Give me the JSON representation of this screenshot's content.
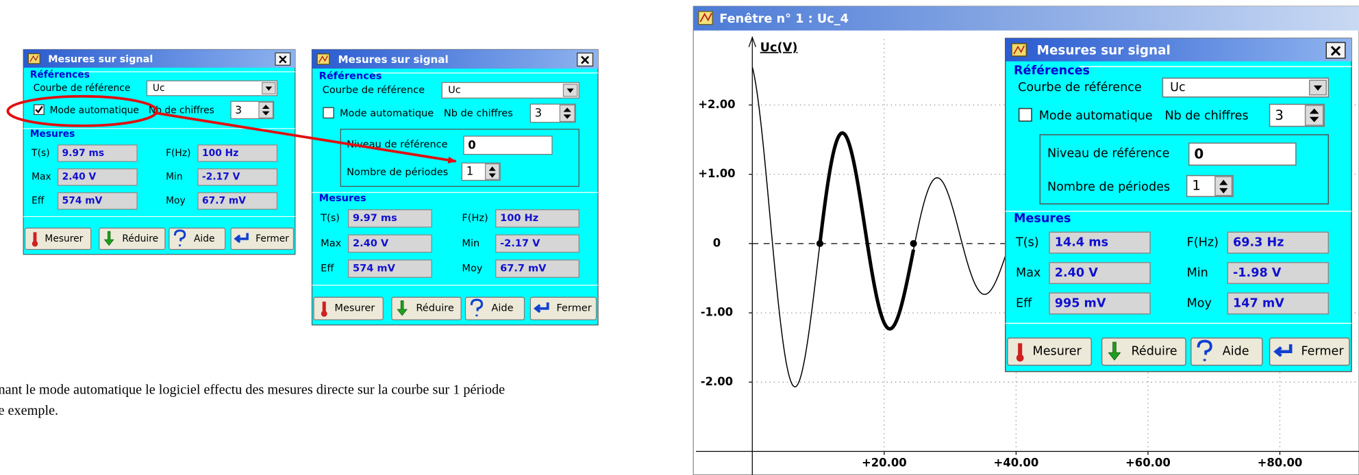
{
  "dialogs": [
    {
      "title": "Mesures sur signal",
      "references_heading": "Références",
      "reference_curve_label": "Courbe de référence",
      "reference_curve": "Uc",
      "auto_mode_label": "Mode automatique",
      "auto_mode": true,
      "digits_label": "Nb de chiffres",
      "digits": 3,
      "measures_heading": "Mesures",
      "measures": [
        {
          "label": "T(s)",
          "value": "9.97 ms"
        },
        {
          "label": "F(Hz)",
          "value": "100 Hz"
        },
        {
          "label": "Max",
          "value": "2.40 V"
        },
        {
          "label": "Min",
          "value": "-2.17 V"
        },
        {
          "label": "Eff",
          "value": "574 mV"
        },
        {
          "label": "Moy",
          "value": "67.7 mV"
        }
      ],
      "buttons": [
        "Mesurer",
        "Réduire",
        "Aide",
        "Fermer"
      ]
    },
    {
      "title": "Mesures sur signal",
      "references_heading": "Références",
      "reference_curve_label": "Courbe de référence",
      "reference_curve": "Uc",
      "auto_mode_label": "Mode automatique",
      "auto_mode": false,
      "digits_label": "Nb de chiffres",
      "digits": 3,
      "level_label": "Niveau de référence",
      "level": 0,
      "periods_label": "Nombre de périodes",
      "periods": 1,
      "measures_heading": "Mesures",
      "measures": [
        {
          "label": "T(s)",
          "value": "9.97 ms"
        },
        {
          "label": "F(Hz)",
          "value": "100 Hz"
        },
        {
          "label": "Max",
          "value": "2.40 V"
        },
        {
          "label": "Min",
          "value": "-2.17 V"
        },
        {
          "label": "Eff",
          "value": "574 mV"
        },
        {
          "label": "Moy",
          "value": "67.7 mV"
        }
      ],
      "buttons": [
        "Mesurer",
        "Réduire",
        "Aide",
        "Fermer"
      ]
    },
    {
      "title": "Mesures sur signal",
      "references_heading": "Références",
      "reference_curve_label": "Courbe de référence",
      "reference_curve": "Uc",
      "auto_mode_label": "Mode automatique",
      "auto_mode": false,
      "digits_label": "Nb de chiffres",
      "digits": 3,
      "level_label": "Niveau de référence",
      "level": 0,
      "periods_label": "Nombre de périodes",
      "periods": 1,
      "measures_heading": "Mesures",
      "measures": [
        {
          "label": "T(s)",
          "value": "14.4 ms"
        },
        {
          "label": "F(Hz)",
          "value": "69.3 Hz"
        },
        {
          "label": "Max",
          "value": "2.40 V"
        },
        {
          "label": "Min",
          "value": "-1.98 V"
        },
        {
          "label": "Eff",
          "value": "995 mV"
        },
        {
          "label": "Moy",
          "value": "147 mV"
        }
      ],
      "buttons": [
        "Mesurer",
        "Réduire",
        "Aide",
        "Fermer"
      ]
    }
  ],
  "caption": [
    "nant le mode automatique le logiciel effectu des mesures directe sur la courbe sur 1 période",
    "e exemple."
  ],
  "window": {
    "title": "Fenêtre n° 1 : Uc_4",
    "plot": {
      "y_label": "Uc(V)",
      "xlim": [
        0,
        92
      ],
      "ylim": [
        -3,
        3
      ],
      "yticks": [
        {
          "value": 2,
          "label": "+2.00"
        },
        {
          "value": 1,
          "label": "+1.00"
        },
        0,
        {
          "value": -1,
          "label": "-1.00"
        },
        {
          "value": -2,
          "label": "-2.00"
        }
      ],
      "xticks": [
        {
          "value": 20,
          "label": "+20.00"
        },
        {
          "value": 40,
          "label": "+40.00"
        },
        {
          "value": 60,
          "label": "+60.00"
        },
        {
          "value": 80,
          "label": "+80.00"
        }
      ]
    }
  }
}
